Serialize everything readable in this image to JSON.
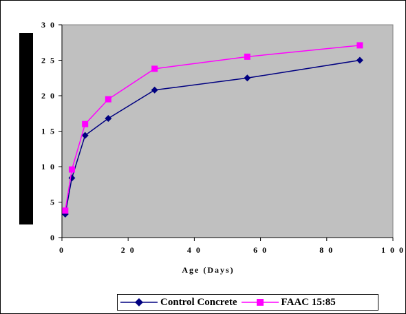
{
  "chart_data": {
    "type": "line",
    "xlabel": "Age (Days)",
    "ylabel": "",
    "xlim": [
      0,
      100
    ],
    "ylim": [
      0,
      30
    ],
    "xticks": [
      0,
      20,
      40,
      60,
      80,
      100
    ],
    "yticks": [
      0,
      5,
      10,
      15,
      20,
      25,
      30
    ],
    "xtick_labels": [
      "0",
      "2 0",
      "4 0",
      "6 0",
      "8 0",
      "1 0 0"
    ],
    "ytick_labels": [
      "0",
      "5",
      "1 0",
      "1 5",
      "2 0",
      "2 5",
      "3 0"
    ],
    "grid": false,
    "plot_background": "#c0c0c0",
    "legend_position": "bottom",
    "series": [
      {
        "name": "Control Concrete",
        "color": "#000080",
        "marker": "diamond",
        "x": [
          1,
          3,
          7,
          14,
          28,
          56,
          90
        ],
        "y": [
          3.3,
          8.4,
          14.4,
          16.8,
          20.8,
          22.5,
          25.0
        ]
      },
      {
        "name": "FAAC 15:85",
        "color": "#ff00ff",
        "marker": "square",
        "x": [
          1,
          3,
          7,
          14,
          28,
          56,
          90
        ],
        "y": [
          3.8,
          9.6,
          16.0,
          19.5,
          23.8,
          25.5,
          27.1
        ]
      }
    ]
  }
}
